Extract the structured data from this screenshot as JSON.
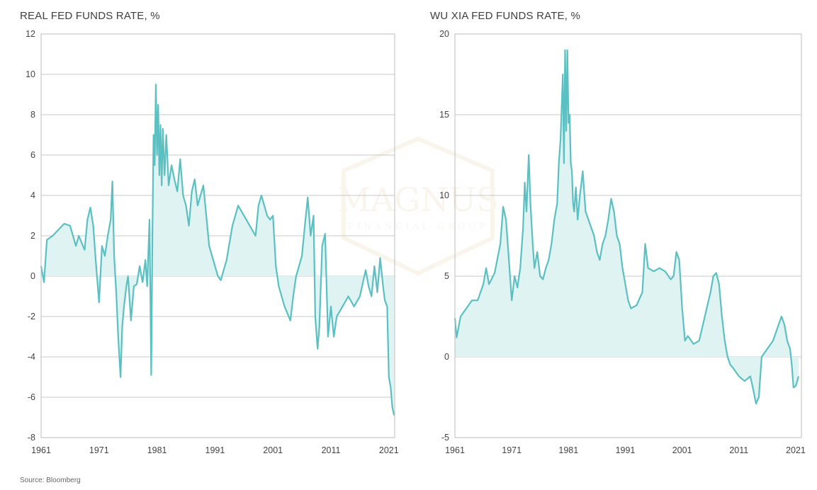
{
  "source": "Source: Bloomberg",
  "watermark": {
    "name": "MAGNUS",
    "tagline": "FINANCIAL GROUP",
    "color": "#c9a45c"
  },
  "colors": {
    "line": "#5bc0c2",
    "fill": "#dff3f3",
    "grid": "#c8c8c8",
    "frame": "#bdbdbd"
  },
  "chart_data": [
    {
      "type": "area",
      "title": "REAL FED FUNDS RATE, %",
      "xlabel": "",
      "ylabel": "",
      "xlim": [
        1961,
        2022
      ],
      "ylim": [
        -8,
        12
      ],
      "yticks": [
        -8,
        -6,
        -4,
        -2,
        0,
        2,
        4,
        6,
        8,
        10,
        12
      ],
      "xticks": [
        1961,
        1971,
        1981,
        1991,
        2001,
        2011,
        2021
      ],
      "grid": true,
      "series": [
        {
          "x": [
            1961,
            1961.5,
            1962,
            1963,
            1964,
            1965,
            1966,
            1967,
            1967.5,
            1968.5,
            1969,
            1969.5,
            1970,
            1970.5,
            1971,
            1971.5,
            1972,
            1972.5,
            1973,
            1973.3,
            1973.6,
            1974,
            1974.3,
            1974.7,
            1975,
            1975.3,
            1975.7,
            1976,
            1976.5,
            1977,
            1977.5,
            1978,
            1978.5,
            1979,
            1979.3,
            1979.7,
            1980,
            1980.2,
            1980.4,
            1980.6,
            1980.8,
            1981,
            1981.2,
            1981.4,
            1981.6,
            1981.8,
            1982,
            1982.3,
            1982.6,
            1983,
            1983.5,
            1984,
            1984.5,
            1985,
            1985.5,
            1986,
            1986.5,
            1987,
            1987.5,
            1988,
            1989,
            1989.5,
            1990,
            1991,
            1991.5,
            1992,
            1993,
            1994,
            1995,
            1996,
            1997,
            1998,
            1998.5,
            1999,
            2000,
            2000.5,
            2001,
            2001.5,
            2002,
            2003,
            2004,
            2004.5,
            2005,
            2005.5,
            2006,
            2006.5,
            2007,
            2007.5,
            2008,
            2008.3,
            2008.7,
            2009,
            2009.5,
            2010,
            2010.5,
            2011,
            2011.5,
            2012,
            2013,
            2014,
            2015,
            2016,
            2017,
            2017.5,
            2018,
            2018.5,
            2019,
            2019.5,
            2020,
            2020.3,
            2020.7,
            2021,
            2021.3,
            2021.6,
            2021.9
          ],
          "y": [
            0.5,
            -0.3,
            1.8,
            2.0,
            2.3,
            2.6,
            2.5,
            1.5,
            2.0,
            1.3,
            2.8,
            3.4,
            2.5,
            0.5,
            -1.3,
            1.5,
            1.0,
            2.0,
            2.8,
            4.7,
            1.0,
            -1.0,
            -3.0,
            -5.0,
            -2.5,
            -1.5,
            -0.5,
            0.0,
            -2.2,
            -0.5,
            -0.4,
            0.5,
            -0.3,
            0.8,
            -0.5,
            2.8,
            -4.9,
            2.0,
            7.0,
            5.5,
            9.5,
            6.0,
            8.5,
            5.0,
            7.5,
            4.5,
            7.3,
            5.0,
            7.0,
            4.5,
            5.5,
            4.8,
            4.2,
            5.8,
            4.0,
            3.5,
            2.5,
            4.2,
            4.8,
            3.5,
            4.5,
            3.0,
            1.5,
            0.5,
            0.0,
            -0.2,
            0.8,
            2.5,
            3.5,
            3.0,
            2.5,
            2.0,
            3.5,
            4.0,
            3.0,
            2.8,
            3.0,
            0.5,
            -0.5,
            -1.5,
            -2.2,
            -1.0,
            0.0,
            0.5,
            1.0,
            2.5,
            3.9,
            2.0,
            3.0,
            -2.0,
            -3.6,
            -2.5,
            1.5,
            2.1,
            -3.0,
            -1.5,
            -3.0,
            -2.0,
            -1.5,
            -1.0,
            -1.5,
            -1.0,
            0.3,
            -0.5,
            -1.0,
            0.5,
            -0.8,
            0.9,
            -0.5,
            -1.2,
            -1.5,
            -5.0,
            -5.5,
            -6.5,
            -6.9
          ]
        }
      ]
    },
    {
      "type": "area",
      "title": "WU XIA FED FUNDS RATE, %",
      "xlabel": "",
      "ylabel": "",
      "xlim": [
        1961,
        2022
      ],
      "ylim": [
        -5,
        20
      ],
      "yticks": [
        -5,
        0,
        5,
        10,
        15,
        20
      ],
      "xticks": [
        1961,
        1971,
        1981,
        1991,
        2001,
        2011,
        2021
      ],
      "grid": true,
      "series": [
        {
          "x": [
            1961,
            1961.3,
            1962,
            1963,
            1964,
            1965,
            1966,
            1966.5,
            1967,
            1968,
            1969,
            1969.5,
            1970,
            1970.5,
            1971,
            1971.5,
            1972,
            1972.5,
            1973,
            1973.3,
            1973.6,
            1974,
            1974.3,
            1974.7,
            1975,
            1975.5,
            1976,
            1976.5,
            1977,
            1977.5,
            1978,
            1978.5,
            1979,
            1979.3,
            1979.6,
            1980,
            1980.2,
            1980.4,
            1980.6,
            1980.8,
            1981,
            1981.2,
            1981.4,
            1981.6,
            1981.8,
            1982,
            1982.3,
            1982.6,
            1983,
            1983.5,
            1984,
            1984.5,
            1985,
            1985.5,
            1986,
            1986.5,
            1987,
            1987.5,
            1988,
            1988.5,
            1989,
            1989.5,
            1990,
            1990.5,
            1991,
            1991.5,
            1992,
            1993,
            1994,
            1994.5,
            1995,
            1996,
            1997,
            1998,
            1999,
            1999.5,
            2000,
            2000.5,
            2001,
            2001.5,
            2002,
            2003,
            2004,
            2005,
            2006,
            2006.5,
            2007,
            2007.5,
            2008,
            2008.5,
            2009,
            2009.5,
            2010,
            2011,
            2012,
            2013,
            2013.5,
            2014,
            2014.5,
            2015,
            2016,
            2017,
            2018,
            2018.5,
            2019,
            2019.5,
            2020,
            2020.3,
            2020.6,
            2021,
            2021.5
          ],
          "y": [
            2.4,
            1.2,
            2.5,
            3.0,
            3.5,
            3.5,
            4.5,
            5.5,
            4.5,
            5.2,
            7.0,
            9.3,
            8.5,
            6.0,
            3.5,
            5.0,
            4.3,
            5.5,
            8.0,
            10.8,
            9.0,
            12.5,
            9.5,
            7.0,
            5.5,
            6.5,
            5.0,
            4.8,
            5.5,
            6.0,
            7.0,
            8.5,
            9.5,
            12.0,
            13.5,
            17.5,
            12.0,
            19.0,
            14.0,
            19.0,
            14.5,
            15.0,
            12.0,
            11.5,
            9.5,
            9.0,
            10.5,
            8.5,
            10.0,
            11.5,
            9.0,
            8.5,
            8.0,
            7.5,
            6.5,
            6.0,
            7.0,
            7.5,
            8.5,
            9.8,
            9.0,
            7.5,
            7.0,
            5.5,
            4.5,
            3.5,
            3.0,
            3.2,
            4.0,
            7.0,
            5.5,
            5.3,
            5.5,
            5.3,
            4.8,
            5.0,
            6.5,
            6.0,
            3.0,
            1.0,
            1.3,
            0.8,
            1.0,
            2.5,
            4.0,
            5.0,
            5.2,
            4.5,
            2.5,
            1.0,
            0.0,
            -0.5,
            -0.7,
            -1.2,
            -1.5,
            -1.2,
            -2.0,
            -2.9,
            -2.5,
            0.0,
            0.5,
            1.0,
            2.0,
            2.5,
            2.0,
            1.0,
            0.5,
            -0.5,
            -1.9,
            -1.8,
            -1.2
          ]
        }
      ]
    }
  ]
}
